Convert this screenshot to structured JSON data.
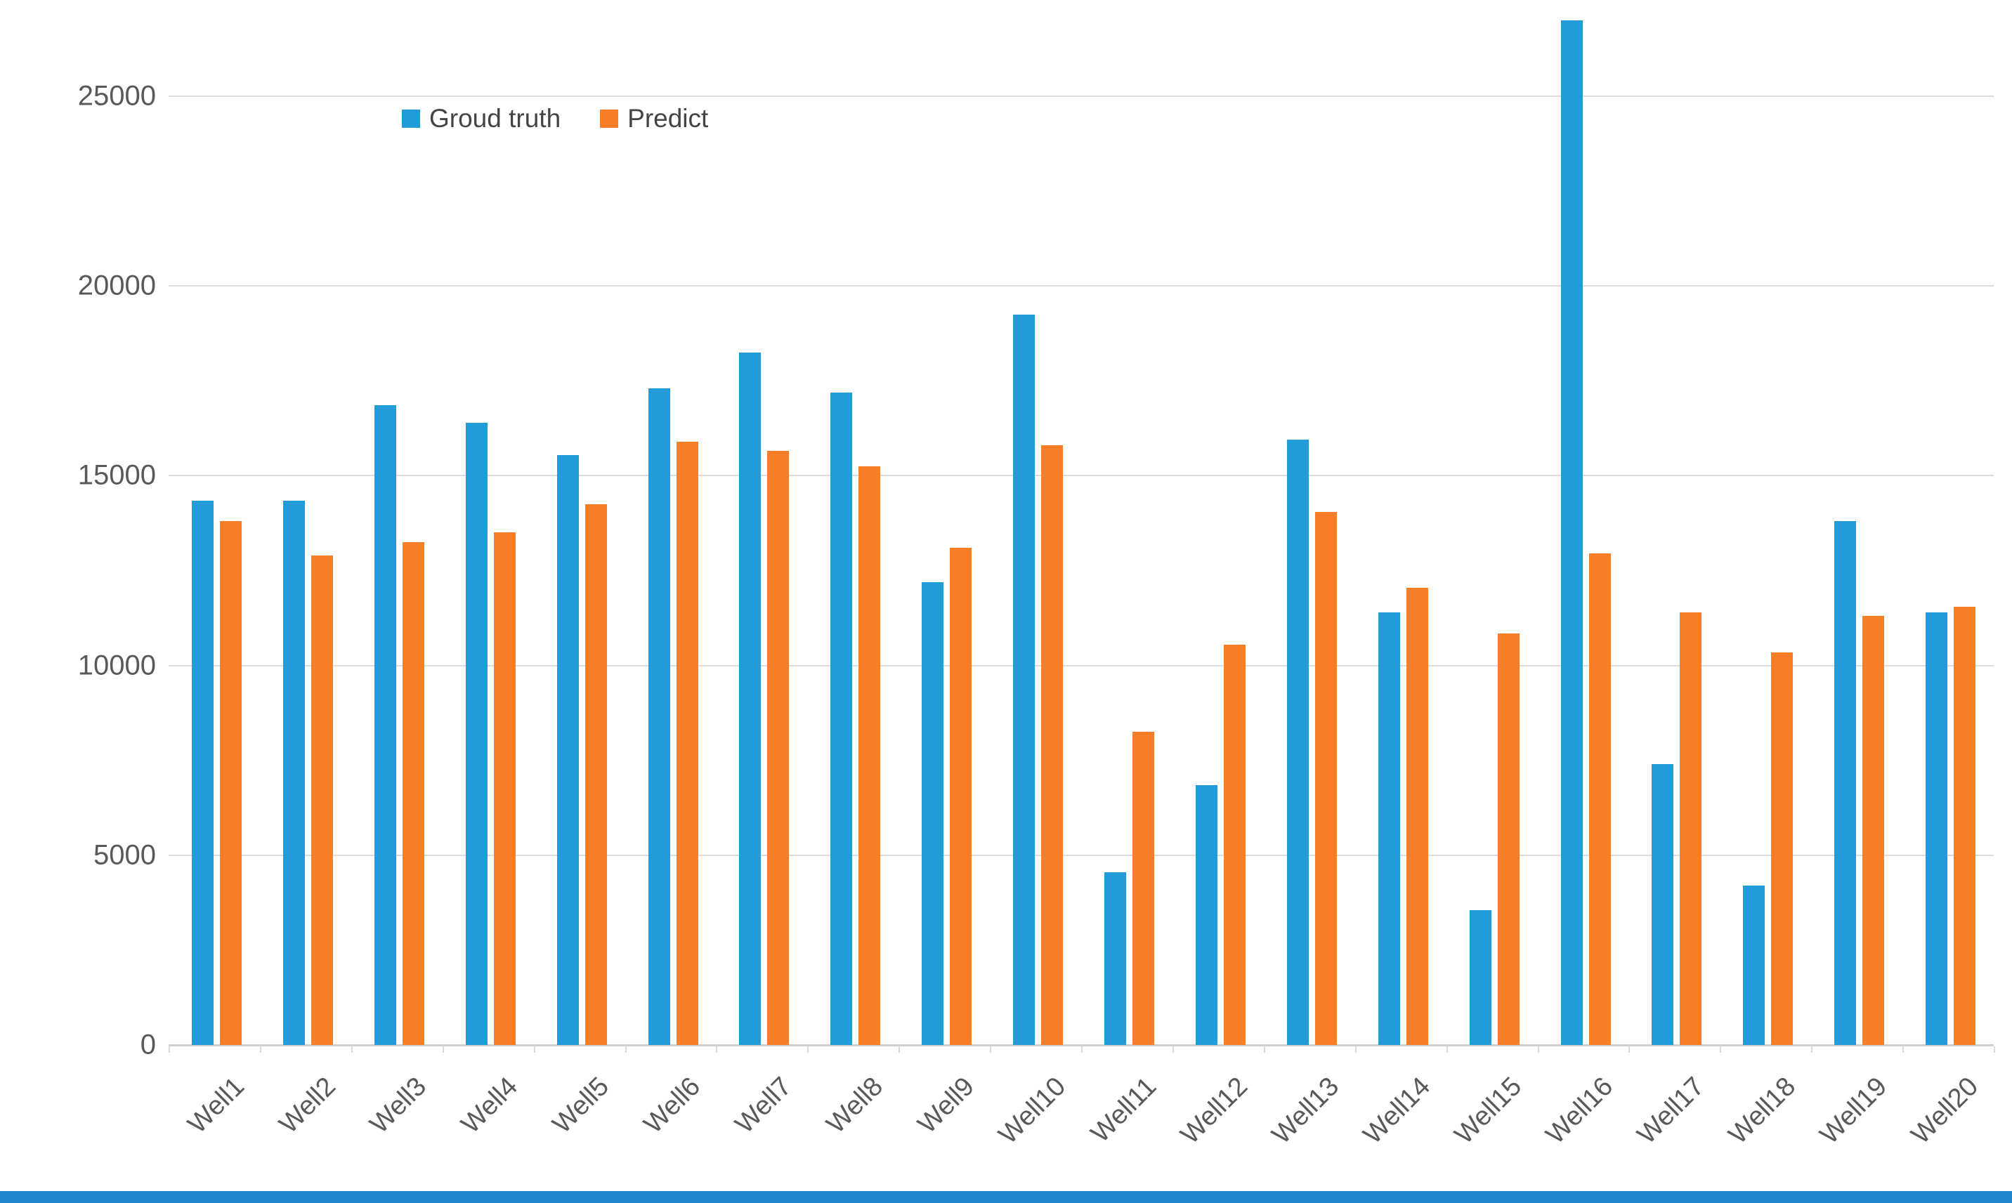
{
  "legend": {
    "series1_label": "Groud truth",
    "series2_label": "Predict"
  },
  "colors": {
    "ground_truth": "#229CD8",
    "predict": "#F97E28",
    "gridline": "#DCDCDC",
    "baseline": "#CFCFCF",
    "axis_text": "#595959",
    "legend_text": "#444444",
    "bottom_strip": "#2087D0"
  },
  "y_axis": {
    "tick_values": [
      0,
      5000,
      10000,
      15000,
      20000,
      25000
    ],
    "max_value": 27540
  },
  "chart_data": {
    "type": "bar",
    "title": "",
    "xlabel": "",
    "ylabel": "",
    "ylim": [
      0,
      27540
    ],
    "grid": true,
    "legend_position": "top-left-inside",
    "categories": [
      "Well1",
      "Well2",
      "Well3",
      "Well4",
      "Well5",
      "Well6",
      "Well7",
      "Well8",
      "Well9",
      "Well10",
      "Well11",
      "Well12",
      "Well13",
      "Well14",
      "Well15",
      "Well16",
      "Well17",
      "Well18",
      "Well19",
      "Well20"
    ],
    "series": [
      {
        "name": "Groud truth",
        "color": "#229CD8",
        "values": [
          14350,
          14350,
          16850,
          16400,
          15550,
          17300,
          18250,
          17200,
          12200,
          19250,
          4550,
          6850,
          15950,
          11400,
          3550,
          27000,
          7400,
          4200,
          13800,
          11400
        ]
      },
      {
        "name": "Predict",
        "color": "#F97E28",
        "values": [
          13800,
          12900,
          13250,
          13500,
          14250,
          15900,
          15650,
          15250,
          13100,
          15800,
          8250,
          10550,
          14050,
          12050,
          10850,
          12950,
          11400,
          10350,
          11300,
          11550
        ]
      }
    ]
  }
}
